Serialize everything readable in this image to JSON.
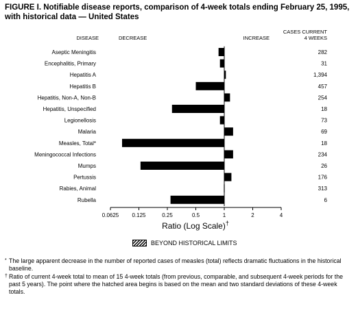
{
  "figure": {
    "title": "FIGURE I. Notifiable disease reports, comparison of 4-week totals ending February 25, 1995, with historical data — United States"
  },
  "chart_data": {
    "type": "bar",
    "orientation": "horizontal",
    "x_scale": "log2",
    "baseline": 1,
    "xlim": [
      0.0625,
      4
    ],
    "xticks": [
      "0.0625",
      "0.125",
      "0.25",
      "0.5",
      "1",
      "2",
      "4"
    ],
    "xlabel": "Ratio (Log Scale)",
    "xlabel_mark": "†",
    "headers": {
      "disease": "DISEASE",
      "decrease": "DECREASE",
      "increase": "INCREASE",
      "cases_line1": "CASES CURRENT",
      "cases_line2": "4 WEEKS"
    },
    "categories": [
      "Aseptic Meningitis",
      "Encephalitis, Primary",
      "Hepatitis A",
      "Hepatitis B",
      "Hepatitis, Non-A, Non-B",
      "Hepatitis, Unspecified",
      "Legionellosis",
      "Malaria",
      "Measles, Total*",
      "Meningococcal Infections",
      "Mumps",
      "Pertussis",
      "Rabies, Animal",
      "Rubella"
    ],
    "values": [
      0.87,
      0.9,
      1.04,
      0.5,
      1.15,
      0.28,
      0.9,
      1.24,
      0.083,
      1.24,
      0.13,
      1.19,
      0.99,
      0.27
    ],
    "cases": [
      "282",
      "31",
      "1,394",
      "457",
      "254",
      "18",
      "73",
      "69",
      "18",
      "234",
      "26",
      "176",
      "313",
      "6"
    ],
    "colors": {
      "bar": "#000000"
    }
  },
  "legend": {
    "label": "BEYOND HISTORICAL LIMITS"
  },
  "footnotes": [
    {
      "mark": "*",
      "text": "The large apparent decrease in the number of reported cases of measles (total) reflects dramatic fluctuations in the historical baseline."
    },
    {
      "mark": "†",
      "text": "Ratio of current 4-week total to mean of 15 4-week totals (from previous, comparable, and subsequent 4-week periods for the past 5 years). The point where the hatched area begins is based on the mean and two standard deviations of these 4-week totals."
    }
  ]
}
